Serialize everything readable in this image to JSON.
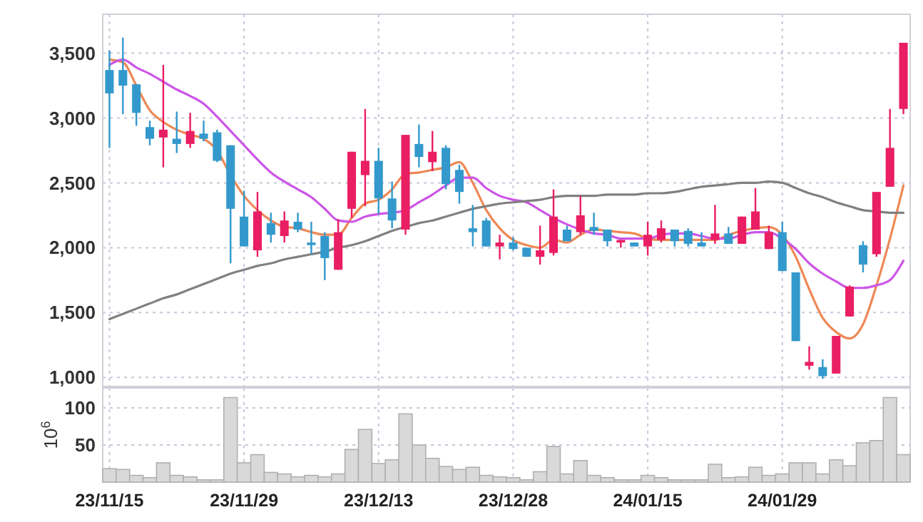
{
  "chart_data": [
    {
      "type": "candlestick",
      "categories": [
        null,
        null,
        null,
        null,
        null,
        null,
        null,
        null,
        null,
        null,
        null,
        null,
        null,
        null,
        null,
        null,
        null,
        null,
        null,
        null,
        null,
        null,
        null,
        null,
        null,
        null,
        null,
        null,
        null,
        null,
        null,
        null,
        null,
        null,
        null,
        null,
        null,
        null,
        null,
        null,
        null,
        null,
        null,
        null,
        null,
        null,
        null,
        null,
        null,
        null,
        null,
        null,
        null,
        null,
        null,
        null,
        null,
        null,
        null,
        null
      ],
      "ohlc": [
        [
          3370,
          3520,
          2770,
          3190
        ],
        [
          3370,
          3620,
          3030,
          3250
        ],
        [
          3260,
          3260,
          2940,
          3040
        ],
        [
          2930,
          2980,
          2790,
          2840
        ],
        [
          2850,
          3410,
          2620,
          2910
        ],
        [
          2840,
          3050,
          2730,
          2800
        ],
        [
          2800,
          3040,
          2770,
          2900
        ],
        [
          2880,
          2980,
          2820,
          2840
        ],
        [
          2890,
          2910,
          2660,
          2670
        ],
        [
          2790,
          2790,
          1880,
          2300
        ],
        [
          2240,
          2440,
          2010,
          2010
        ],
        [
          1980,
          2430,
          1930,
          2280
        ],
        [
          2190,
          2270,
          2040,
          2100
        ],
        [
          2090,
          2280,
          2040,
          2210
        ],
        [
          2200,
          2270,
          2120,
          2140
        ],
        [
          2040,
          2200,
          1950,
          2020
        ],
        [
          2090,
          2120,
          1750,
          1920
        ],
        [
          1830,
          2220,
          1830,
          2120
        ],
        [
          2300,
          2740,
          2230,
          2740
        ],
        [
          2560,
          3070,
          2320,
          2670
        ],
        [
          2670,
          2770,
          2260,
          2380
        ],
        [
          2380,
          2510,
          2150,
          2210
        ],
        [
          2140,
          2870,
          2100,
          2870
        ],
        [
          2800,
          2950,
          2620,
          2700
        ],
        [
          2660,
          2900,
          2590,
          2740
        ],
        [
          2770,
          2790,
          2450,
          2490
        ],
        [
          2600,
          2640,
          2340,
          2430
        ],
        [
          2150,
          2330,
          2010,
          2120
        ],
        [
          2210,
          2230,
          2010,
          2010
        ],
        [
          2010,
          2100,
          1910,
          2040
        ],
        [
          2040,
          2080,
          1980,
          1990
        ],
        [
          2000,
          2000,
          1930,
          1930
        ],
        [
          1930,
          2170,
          1870,
          1980
        ],
        [
          1960,
          2450,
          1940,
          2240
        ],
        [
          2140,
          2170,
          2050,
          2050
        ],
        [
          2120,
          2400,
          2100,
          2250
        ],
        [
          2160,
          2270,
          2100,
          2130
        ],
        [
          2140,
          2140,
          2010,
          2050
        ],
        [
          2040,
          2060,
          2000,
          2060
        ],
        [
          2040,
          2040,
          2010,
          2010
        ],
        [
          2010,
          2200,
          1940,
          2100
        ],
        [
          2060,
          2210,
          2040,
          2150
        ],
        [
          2140,
          2140,
          2010,
          2050
        ],
        [
          2130,
          2150,
          2010,
          2030
        ],
        [
          2040,
          2120,
          2010,
          2010
        ],
        [
          2060,
          2330,
          2030,
          2110
        ],
        [
          2110,
          2160,
          2030,
          2030
        ],
        [
          2030,
          2240,
          2030,
          2240
        ],
        [
          2140,
          2460,
          2140,
          2280
        ],
        [
          1990,
          2170,
          1990,
          2120
        ],
        [
          2120,
          2200,
          1820,
          1820
        ],
        [
          1810,
          1810,
          1280,
          1280
        ],
        [
          1090,
          1240,
          1060,
          1120
        ],
        [
          1080,
          1140,
          990,
          1010
        ],
        [
          1030,
          1320,
          1030,
          1320
        ],
        [
          1470,
          1710,
          1470,
          1700
        ],
        [
          2020,
          2050,
          1810,
          1870
        ],
        [
          1950,
          2430,
          1930,
          2430
        ],
        [
          2470,
          3070,
          2470,
          2770
        ],
        [
          3070,
          3580,
          3030,
          3580
        ]
      ],
      "colors": [
        "#3399cc",
        "#3399cc",
        "#3399cc",
        "#3399cc",
        "#e91e63",
        "#3399cc",
        "#e91e63",
        "#3399cc",
        "#3399cc",
        "#3399cc",
        "#3399cc",
        "#e91e63",
        "#3399cc",
        "#e91e63",
        "#3399cc",
        "#3399cc",
        "#3399cc",
        "#e91e63",
        "#e91e63",
        "#e91e63",
        "#3399cc",
        "#3399cc",
        "#e91e63",
        "#3399cc",
        "#e91e63",
        "#3399cc",
        "#3399cc",
        "#3399cc",
        "#3399cc",
        "#e91e63",
        "#3399cc",
        "#3399cc",
        "#e91e63",
        "#e91e63",
        "#3399cc",
        "#e91e63",
        "#3399cc",
        "#3399cc",
        "#e91e63",
        "#3399cc",
        "#e91e63",
        "#e91e63",
        "#3399cc",
        "#3399cc",
        "#3399cc",
        "#e91e63",
        "#3399cc",
        "#e91e63",
        "#e91e63",
        "#e91e63",
        "#3399cc",
        "#3399cc",
        "#e91e63",
        "#3399cc",
        "#e91e63",
        "#e91e63",
        "#3399cc",
        "#e91e63",
        "#e91e63",
        "#e91e63"
      ],
      "series": [
        {
          "type": "line",
          "color": "#ee8855",
          "values": [
            3450,
            3430,
            3250,
            3060,
            2970,
            2910,
            2870,
            2840,
            2750,
            2560,
            2400,
            2290,
            2210,
            2160,
            2150,
            2120,
            2100,
            2100,
            2230,
            2340,
            2370,
            2450,
            2570,
            2580,
            2600,
            2620,
            2660,
            2500,
            2290,
            2150,
            2060,
            2020,
            2000,
            2060,
            2040,
            2100,
            2140,
            2130,
            2120,
            2110,
            2070,
            2060,
            2060,
            2060,
            2060,
            2060,
            2100,
            2130,
            2150,
            2160,
            2100,
            1930,
            1680,
            1460,
            1350,
            1300,
            1410,
            1710,
            2070,
            2480
          ]
        },
        {
          "type": "line",
          "color": "#cc55e6",
          "values": [
            3410,
            3450,
            3390,
            3340,
            3280,
            3220,
            3170,
            3110,
            3010,
            2900,
            2790,
            2680,
            2580,
            2510,
            2450,
            2390,
            2300,
            2210,
            2200,
            2240,
            2260,
            2270,
            2290,
            2350,
            2410,
            2480,
            2540,
            2540,
            2460,
            2400,
            2370,
            2350,
            2290,
            2230,
            2180,
            2140,
            2110,
            2100,
            2070,
            2070,
            2070,
            2100,
            2110,
            2110,
            2090,
            2070,
            2070,
            2100,
            2120,
            2120,
            2070,
            1990,
            1880,
            1800,
            1740,
            1690,
            1690,
            1710,
            1750,
            1900
          ]
        },
        {
          "type": "line",
          "color": "#808080",
          "values": [
            1450,
            1490,
            1530,
            1570,
            1610,
            1640,
            1680,
            1720,
            1760,
            1800,
            1830,
            1860,
            1880,
            1910,
            1930,
            1950,
            1970,
            2000,
            2020,
            2050,
            2090,
            2130,
            2160,
            2190,
            2210,
            2240,
            2270,
            2300,
            2320,
            2340,
            2350,
            2360,
            2370,
            2390,
            2400,
            2400,
            2400,
            2410,
            2410,
            2410,
            2420,
            2420,
            2430,
            2450,
            2470,
            2480,
            2490,
            2500,
            2500,
            2510,
            2500,
            2460,
            2420,
            2390,
            2350,
            2320,
            2290,
            2280,
            2270,
            2270
          ]
        }
      ],
      "ylim": [
        930,
        3800
      ],
      "yticks": [
        {
          "value": 1000,
          "label": "1,000"
        },
        {
          "value": 1500,
          "label": "1,500"
        },
        {
          "value": 2000,
          "label": "2,000"
        },
        {
          "value": 2500,
          "label": "2,500"
        },
        {
          "value": 3000,
          "label": "3,000"
        },
        {
          "value": 3500,
          "label": "3,500"
        }
      ],
      "grid": true,
      "tick_labels": "y"
    },
    {
      "type": "bar",
      "categories": [
        "23/11/15",
        null,
        null,
        null,
        null,
        null,
        null,
        null,
        null,
        null,
        "23/11/29",
        null,
        null,
        null,
        null,
        null,
        null,
        null,
        null,
        null,
        "23/12/13",
        null,
        null,
        null,
        null,
        null,
        null,
        null,
        null,
        null,
        "23/12/28",
        null,
        null,
        null,
        null,
        null,
        null,
        null,
        null,
        null,
        "24/01/15",
        null,
        null,
        null,
        null,
        null,
        null,
        null,
        null,
        null,
        "24/01/29",
        null,
        null,
        null,
        null,
        null,
        null,
        null,
        null,
        null
      ],
      "values": [
        18,
        17,
        9,
        6,
        26,
        9,
        7,
        3,
        3,
        114,
        26,
        37,
        13,
        11,
        7,
        9,
        7,
        11,
        44,
        71,
        25,
        30,
        92,
        50,
        32,
        21,
        17,
        20,
        9,
        7,
        6,
        3,
        14,
        48,
        11,
        29,
        9,
        6,
        3,
        3,
        9,
        6,
        3,
        3,
        3,
        24,
        6,
        7,
        20,
        9,
        11,
        26,
        26,
        11,
        30,
        22,
        53,
        56,
        114,
        37
      ],
      "color": "#d9d9d9",
      "ylabel": "10$^{6}$",
      "ylim": [
        0,
        127
      ],
      "yticks": [
        50,
        100
      ],
      "grid": true
    }
  ]
}
